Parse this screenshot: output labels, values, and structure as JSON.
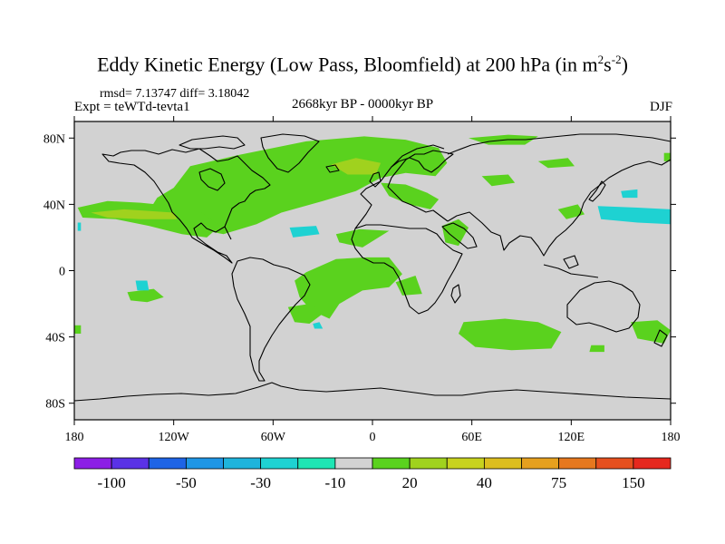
{
  "chart_data": {
    "type": "heatmap",
    "title": "Eddy Kinetic Energy (Low Pass, Bloomfield) at 200 hPa (in m",
    "title_sup1": "2",
    "title_mid": "s",
    "title_sup2": "-2",
    "title_end": ")",
    "stats_label": "rmsd= 7.13747 diff= 3.18042",
    "experiment": "Expt = teWTd-tevta1",
    "period": "2668kyr BP - 0000kyr BP",
    "season": "DJF",
    "x_range": [
      -180,
      180
    ],
    "y_range": [
      -90,
      90
    ],
    "x_ticks": [
      {
        "value": -180,
        "label": "180"
      },
      {
        "value": -120,
        "label": "120W"
      },
      {
        "value": -60,
        "label": "60W"
      },
      {
        "value": 0,
        "label": "0"
      },
      {
        "value": 60,
        "label": "60E"
      },
      {
        "value": 120,
        "label": "120E"
      },
      {
        "value": 180,
        "label": "180"
      }
    ],
    "y_ticks": [
      {
        "value": 80,
        "label": "80N"
      },
      {
        "value": 40,
        "label": "40N"
      },
      {
        "value": 0,
        "label": "0"
      },
      {
        "value": -40,
        "label": "40S"
      },
      {
        "value": -80,
        "label": "80S"
      }
    ],
    "colorbar": {
      "colors": [
        "#8c1ee6",
        "#5a32e6",
        "#1e64e6",
        "#1e96e6",
        "#1eb4dc",
        "#1ed2d2",
        "#1ee6b4",
        "#d2d2d2",
        "#5ad21e",
        "#a0d21e",
        "#c8d21e",
        "#dcbe1e",
        "#e6a01e",
        "#e6781e",
        "#e6501e",
        "#e6281e"
      ],
      "labels": [
        {
          "boundary": 1,
          "text": "-100"
        },
        {
          "boundary": 3,
          "text": "-50"
        },
        {
          "boundary": 5,
          "text": "-30"
        },
        {
          "boundary": 7,
          "text": "-10"
        },
        {
          "boundary": 9,
          "text": "20"
        },
        {
          "boundary": 11,
          "text": "40"
        },
        {
          "boundary": 13,
          "text": "75"
        },
        {
          "boundary": 15,
          "text": "150"
        }
      ]
    },
    "regions": [
      {
        "level": "10 to 20",
        "color": "#5ad21e",
        "label": "north-atlantic-positive",
        "points": [
          [
            -110,
            63
          ],
          [
            -80,
            70
          ],
          [
            -40,
            78
          ],
          [
            -5,
            81
          ],
          [
            20,
            79
          ],
          [
            40,
            74
          ],
          [
            45,
            65
          ],
          [
            38,
            57
          ],
          [
            20,
            59
          ],
          [
            5,
            56
          ],
          [
            -10,
            48
          ],
          [
            -30,
            42
          ],
          [
            -55,
            35
          ],
          [
            -70,
            28
          ],
          [
            -90,
            22
          ],
          [
            -110,
            26
          ],
          [
            -125,
            30
          ],
          [
            -135,
            36
          ],
          [
            -130,
            44
          ],
          [
            -120,
            50
          ]
        ]
      },
      {
        "level": "10 to 20",
        "color": "#5ad21e",
        "label": "mediterranean-arm",
        "points": [
          [
            5,
            53
          ],
          [
            20,
            52
          ],
          [
            33,
            47
          ],
          [
            40,
            43
          ],
          [
            35,
            37
          ],
          [
            22,
            40
          ],
          [
            10,
            45
          ]
        ]
      },
      {
        "level": "10 to 20",
        "color": "#5ad21e",
        "label": "north-pacific-positive",
        "points": [
          [
            -178,
            38
          ],
          [
            -160,
            42
          ],
          [
            -140,
            41
          ],
          [
            -120,
            39
          ],
          [
            -103,
            35
          ],
          [
            -92,
            27
          ],
          [
            -100,
            20
          ],
          [
            -115,
            22
          ],
          [
            -135,
            27
          ],
          [
            -155,
            31
          ],
          [
            -175,
            32
          ]
        ]
      },
      {
        "level": "10 to 20",
        "color": "#5ad21e",
        "label": "arctic-russia-positive",
        "points": [
          [
            58,
            80
          ],
          [
            82,
            82
          ],
          [
            100,
            81
          ],
          [
            92,
            76
          ],
          [
            70,
            76
          ]
        ]
      },
      {
        "level": "10 to 20",
        "color": "#5ad21e",
        "label": "siberia-positive",
        "points": [
          [
            100,
            66
          ],
          [
            118,
            68
          ],
          [
            122,
            63
          ],
          [
            106,
            62
          ]
        ]
      },
      {
        "level": "10 to 20",
        "color": "#5ad21e",
        "label": "central-asia-positive",
        "points": [
          [
            66,
            57
          ],
          [
            82,
            58
          ],
          [
            86,
            53
          ],
          [
            72,
            51
          ]
        ]
      },
      {
        "level": "10 to 20",
        "color": "#5ad21e",
        "label": "arabia-positive",
        "points": [
          [
            42,
            27
          ],
          [
            52,
            31
          ],
          [
            58,
            26
          ],
          [
            52,
            15
          ],
          [
            44,
            17
          ]
        ]
      },
      {
        "level": "10 to 20",
        "color": "#5ad21e",
        "label": "east-asia-positive",
        "points": [
          [
            112,
            37
          ],
          [
            124,
            40
          ],
          [
            128,
            34
          ],
          [
            117,
            31
          ]
        ]
      },
      {
        "level": "10 to 20",
        "color": "#5ad21e",
        "label": "sahara-positive",
        "points": [
          [
            -22,
            22
          ],
          [
            -8,
            25
          ],
          [
            10,
            24
          ],
          [
            -6,
            14
          ],
          [
            -20,
            17
          ]
        ]
      },
      {
        "level": "10 to 20",
        "color": "#5ad21e",
        "label": "south-atlantic-positive",
        "points": [
          [
            -40,
            -1
          ],
          [
            -22,
            7
          ],
          [
            -4,
            8
          ],
          [
            10,
            8
          ],
          [
            18,
            -2
          ],
          [
            10,
            -10
          ],
          [
            -6,
            -12
          ],
          [
            -20,
            -20
          ],
          [
            -26,
            -29
          ],
          [
            -37,
            -24
          ],
          [
            -44,
            -16
          ],
          [
            -47,
            -6
          ]
        ]
      },
      {
        "level": "10 to 20",
        "color": "#5ad21e",
        "label": "congo-positive",
        "points": [
          [
            14,
            -7
          ],
          [
            26,
            -3
          ],
          [
            30,
            -14
          ],
          [
            18,
            -15
          ]
        ]
      },
      {
        "level": "10 to 20",
        "color": "#5ad21e",
        "label": "south-atlantic-west-positive",
        "points": [
          [
            -51,
            -22
          ],
          [
            -38,
            -20
          ],
          [
            -30,
            -26
          ],
          [
            -38,
            -32
          ],
          [
            -47,
            -31
          ]
        ]
      },
      {
        "level": "10 to 20",
        "color": "#5ad21e",
        "label": "south-pacific-positive",
        "points": [
          [
            -148,
            -13
          ],
          [
            -132,
            -11
          ],
          [
            -126,
            -16
          ],
          [
            -136,
            -19
          ],
          [
            -146,
            -18
          ]
        ]
      },
      {
        "level": "10 to 20",
        "color": "#5ad21e",
        "label": "southern-indian-ocean-positive",
        "points": [
          [
            55,
            -31
          ],
          [
            80,
            -29
          ],
          [
            100,
            -31
          ],
          [
            114,
            -37
          ],
          [
            108,
            -47
          ],
          [
            84,
            -48
          ],
          [
            62,
            -46
          ],
          [
            52,
            -38
          ]
        ]
      },
      {
        "level": "10 to 20",
        "color": "#5ad21e",
        "label": "tasman-positive",
        "points": [
          [
            156,
            -31
          ],
          [
            172,
            -30
          ],
          [
            180,
            -36
          ],
          [
            176,
            -44
          ],
          [
            160,
            -41
          ]
        ]
      },
      {
        "level": "10 to 20",
        "color": "#5ad21e",
        "label": "southwest-pacific-positive",
        "points": [
          [
            132,
            -45
          ],
          [
            140,
            -45
          ],
          [
            140,
            -49
          ],
          [
            131,
            -49
          ]
        ]
      },
      {
        "level": "10 to 20",
        "color": "#5ad21e",
        "label": "east-pacific-edge-positive",
        "points": [
          [
            176,
            71
          ],
          [
            180,
            71
          ],
          [
            180,
            66
          ],
          [
            176,
            66
          ]
        ]
      },
      {
        "level": "10 to 20",
        "color": "#5ad21e",
        "label": "west-pacific-edge-positive",
        "points": [
          [
            -180,
            -33
          ],
          [
            -176,
            -33
          ],
          [
            -176,
            -38
          ],
          [
            -180,
            -38
          ]
        ]
      },
      {
        "level": "20 to 30",
        "color": "#a0d21e",
        "label": "north-pacific-core",
        "points": [
          [
            -170,
            35
          ],
          [
            -150,
            37
          ],
          [
            -120,
            35
          ],
          [
            -118,
            31
          ],
          [
            -140,
            31
          ],
          [
            -160,
            32
          ]
        ]
      },
      {
        "level": "20 to 30",
        "color": "#a0d21e",
        "label": "north-atlantic-core",
        "points": [
          [
            -25,
            64
          ],
          [
            -10,
            68
          ],
          [
            5,
            65
          ],
          [
            2,
            58
          ],
          [
            -15,
            58
          ]
        ]
      },
      {
        "level": "-20 to -10",
        "color": "#1ed2d2",
        "label": "west-pacific-negative",
        "points": [
          [
            136,
            39
          ],
          [
            160,
            38
          ],
          [
            180,
            37
          ],
          [
            180,
            28
          ],
          [
            160,
            29
          ],
          [
            138,
            31
          ]
        ]
      },
      {
        "level": "-20 to -10",
        "color": "#1ed2d2",
        "label": "japan-sea-negative",
        "points": [
          [
            150,
            48
          ],
          [
            160,
            49
          ],
          [
            160,
            44
          ],
          [
            151,
            44
          ]
        ]
      },
      {
        "level": "-20 to -10",
        "color": "#1ed2d2",
        "label": "atlantic-subtropical-negative",
        "points": [
          [
            -50,
            26
          ],
          [
            -34,
            27
          ],
          [
            -32,
            22
          ],
          [
            -48,
            20
          ]
        ]
      },
      {
        "level": "-20 to -10",
        "color": "#1ed2d2",
        "label": "east-pacific-negative",
        "points": [
          [
            -143,
            -6
          ],
          [
            -136,
            -6
          ],
          [
            -135,
            -12
          ],
          [
            -142,
            -12
          ]
        ]
      },
      {
        "level": "-20 to -10",
        "color": "#1ed2d2",
        "label": "south-atlantic-negative",
        "points": [
          [
            -36,
            -32
          ],
          [
            -32,
            -31
          ],
          [
            -30,
            -35
          ],
          [
            -35,
            -35
          ]
        ]
      },
      {
        "level": "-20 to -10",
        "color": "#1ed2d2",
        "label": "hawaii-negative",
        "points": [
          [
            -178,
            29
          ],
          [
            -176,
            29
          ],
          [
            -176,
            24
          ],
          [
            -178,
            24
          ]
        ]
      }
    ]
  }
}
